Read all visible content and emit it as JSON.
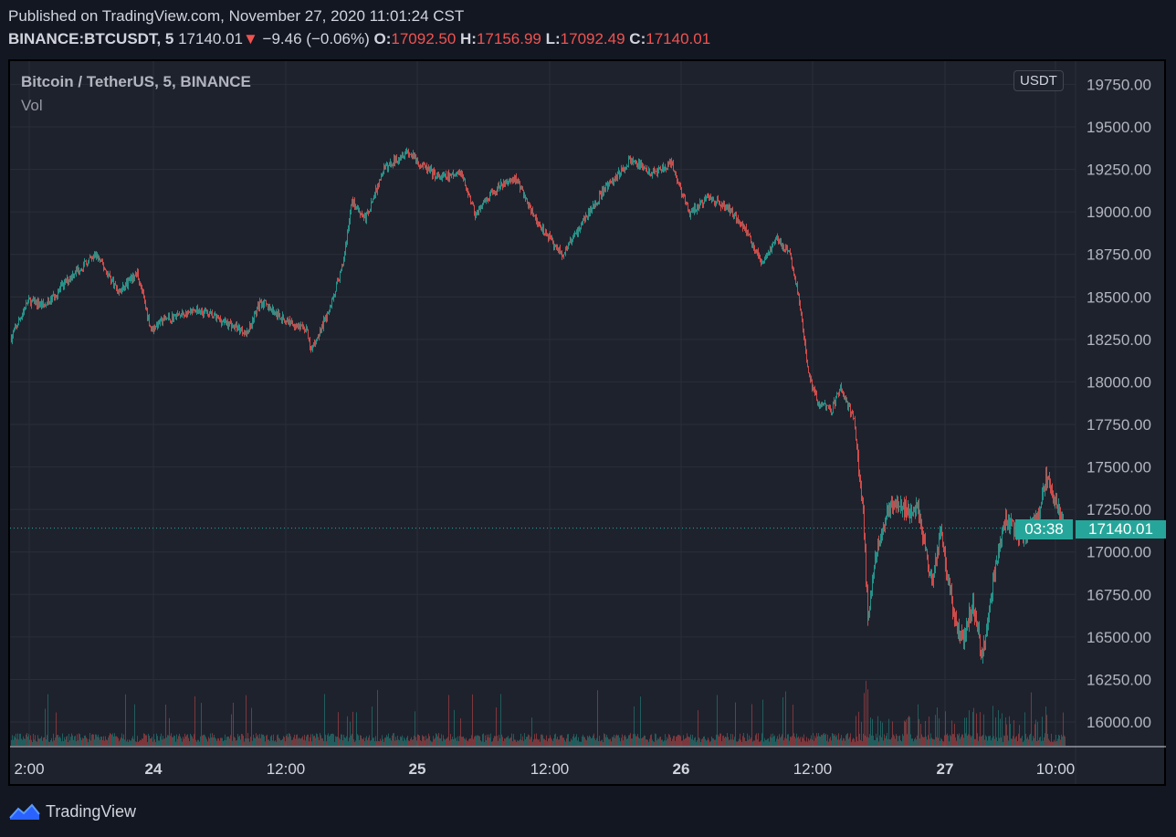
{
  "header": {
    "published": "Published on TradingView.com, November 27, 2020 11:01:24 CST",
    "symbol": "BINANCE:BTCUSDT, 5",
    "last": "17140.01",
    "change": "−9.46 (−0.06%)",
    "o_label": "O:",
    "o": "17092.50",
    "h_label": "H:",
    "h": "17156.99",
    "l_label": "L:",
    "l": "17092.49",
    "c_label": "C:",
    "c": "17140.01"
  },
  "legend": {
    "title": "Bitcoin / TetherUS, 5, BINANCE",
    "vol": "Vol"
  },
  "currency": "USDT",
  "price_label": "17140.01",
  "countdown": "03:38",
  "footer": {
    "brand": "TradingView"
  },
  "colors": {
    "up": "#26a69a",
    "down": "#ef5350",
    "bg": "#1e222d"
  },
  "chart_data": {
    "type": "candlestick",
    "title": "Bitcoin / TetherUS, 5, BINANCE",
    "interval_minutes": 5,
    "ylim": [
      15850,
      19900
    ],
    "y_ticks": [
      19750,
      19500,
      19250,
      19000,
      18750,
      18500,
      18250,
      18000,
      17750,
      17500,
      17250,
      17000,
      16750,
      16500,
      16250,
      16000
    ],
    "x_ticks": [
      "2:00",
      "24",
      "12:00",
      "25",
      "12:00",
      "26",
      "12:00",
      "27",
      "10:00"
    ],
    "x_tick_index": [
      22,
      158,
      303,
      447,
      592,
      736,
      880,
      1025,
      1146
    ],
    "last_price": 17140.01,
    "anchors_index": [
      2,
      20,
      40,
      70,
      95,
      120,
      140,
      155,
      170,
      210,
      260,
      275,
      300,
      325,
      330,
      350,
      365,
      375,
      390,
      410,
      435,
      450,
      470,
      495,
      510,
      535,
      555,
      575,
      595,
      605,
      630,
      650,
      680,
      705,
      725,
      745,
      765,
      790,
      805,
      825,
      840,
      855,
      865,
      875,
      885,
      900,
      910,
      925,
      935,
      940,
      950,
      965,
      980,
      995,
      1010,
      1020,
      1035,
      1045,
      1055,
      1065,
      1080,
      1090,
      1110,
      1125,
      1135,
      1150,
      1156
    ],
    "anchors_price": [
      18260,
      18475,
      18450,
      18640,
      18745,
      18530,
      18640,
      18310,
      18370,
      18420,
      18290,
      18475,
      18370,
      18310,
      18180,
      18420,
      18690,
      19065,
      18960,
      19250,
      19360,
      19280,
      19200,
      19225,
      18985,
      19145,
      19200,
      18960,
      18820,
      18745,
      18960,
      19120,
      19305,
      19225,
      19280,
      18985,
      19090,
      19010,
      18905,
      18690,
      18850,
      18745,
      18475,
      18045,
      17885,
      17830,
      17965,
      17775,
      17240,
      16595,
      17025,
      17295,
      17240,
      17265,
      16810,
      17130,
      16595,
      16490,
      16705,
      16380,
      16920,
      17185,
      17080,
      17185,
      17430,
      17240,
      17140
    ]
  }
}
